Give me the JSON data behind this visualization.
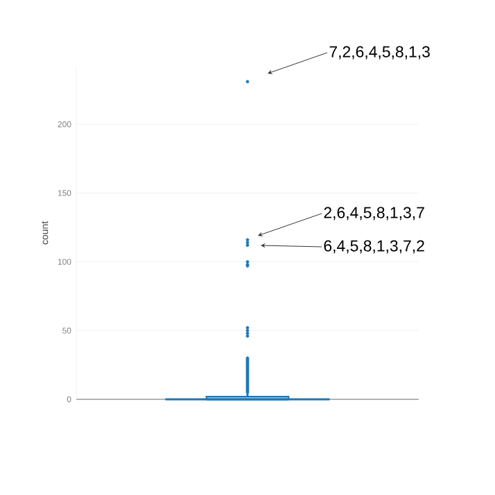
{
  "chart_data": {
    "type": "box",
    "ylabel": "count",
    "categories": [
      null
    ],
    "boxes": [
      {
        "low": 0,
        "q1": 0,
        "median": 0,
        "q3": 2,
        "high": 4,
        "outliers": [
          5,
          6,
          7,
          8,
          9,
          10,
          11,
          12,
          13,
          14,
          15,
          16,
          17,
          18,
          19,
          20,
          21,
          22,
          23,
          24,
          25,
          26,
          27,
          28,
          29,
          30,
          46,
          48,
          50,
          52,
          97,
          98,
          100,
          112,
          114,
          116,
          231
        ]
      }
    ],
    "color": "#1f77b4",
    "ylim": [
      0,
      242
    ],
    "yticks": [
      0,
      50,
      100,
      150,
      200
    ],
    "grid": "y",
    "tick_labels": "y",
    "marker": "circle",
    "annotations": [
      "7,2,6,4,5,8,1,3",
      "2,6,4,5,8,1,3,7",
      "6,4,5,8,1,3,7,2"
    ]
  }
}
